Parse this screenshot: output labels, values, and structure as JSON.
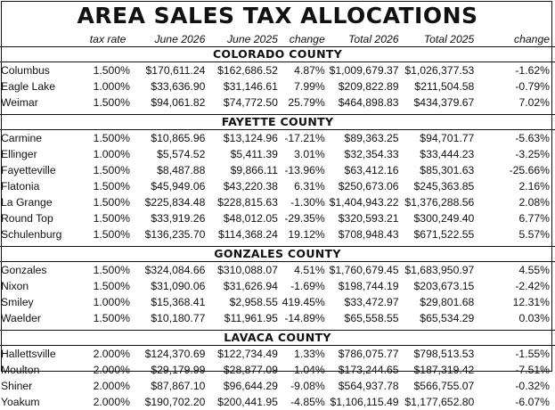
{
  "title": "AREA SALES TAX ALLOCATIONS",
  "headers": [
    "",
    "tax rate",
    "June 2026",
    "June 2025",
    "change",
    "Total 2026",
    "Total 2025",
    "change"
  ],
  "counties": [
    {
      "name": "COLORADO COUNTY",
      "rows": [
        [
          "Columbus",
          "1.500%",
          "$170,611.24",
          "$162,686.52",
          "4.87%",
          "$1,009,679.37",
          "$1,026,377.53",
          "-1.62%"
        ],
        [
          "Eagle Lake",
          "1.000%",
          "$33,636.90",
          "$31,146.61",
          "7.99%",
          "$209,822.89",
          "$211,504.58",
          "-0.79%"
        ],
        [
          "Weimar",
          "1.500%",
          "$94,061.82",
          "$74,772.50",
          "25.79%",
          "$464,898.83",
          "$434,379.67",
          "7.02%"
        ]
      ]
    },
    {
      "name": "FAYETTE COUNTY",
      "rows": [
        [
          "Carmine",
          "1.500%",
          "$10,865.96",
          "$13,124.96",
          "-17.21%",
          "$89,363.25",
          "$94,701.77",
          "-5.63%"
        ],
        [
          "Ellinger",
          "1.000%",
          "$5,574.52",
          "$5,411.39",
          "3.01%",
          "$32,354.33",
          "$33,444.23",
          "-3.25%"
        ],
        [
          "Fayetteville",
          "1.500%",
          "$8,487.88",
          "$9,866.11",
          "-13.96%",
          "$63,412.16",
          "$85,301.63",
          "-25.66%"
        ],
        [
          "Flatonia",
          "1.500%",
          "$45,949.06",
          "$43,220.38",
          "6.31%",
          "$250,673.06",
          "$245,363.85",
          "2.16%"
        ],
        [
          "La Grange",
          "1.500%",
          "$225,834.48",
          "$228,815.63",
          "-1.30%",
          "$1,404,943.22",
          "$1,376,288.56",
          "2.08%"
        ],
        [
          "Round Top",
          "1.500%",
          "$33,919.26",
          "$48,012.05",
          "-29.35%",
          "$320,593.21",
          "$300,249.40",
          "6.77%"
        ],
        [
          "Schulenburg",
          "1.500%",
          "$136,235.70",
          "$114,368.24",
          "19.12%",
          "$708,948.43",
          "$671,522.55",
          "5.57%"
        ]
      ]
    },
    {
      "name": "GONZALES COUNTY",
      "rows": [
        [
          "Gonzales",
          "1.500%",
          "$324,084.66",
          "$310,088.07",
          "4.51%",
          "$1,760,679.45",
          "$1,683,950.97",
          "4.55%"
        ],
        [
          "Nixon",
          "1.500%",
          "$31,090.06",
          "$31,626.94",
          "-1.69%",
          "$198,744.19",
          "$203,673.15",
          "-2.42%"
        ],
        [
          "Smiley",
          "1.000%",
          "$15,368.41",
          "$2,958.55",
          "419.45%",
          "$33,472.97",
          "$29,801.68",
          "12.31%"
        ],
        [
          "Waelder",
          "1.500%",
          "$10,180.77",
          "$11,961.95",
          "-14.89%",
          "$65,558.55",
          "$65,534.29",
          "0.03%"
        ]
      ]
    },
    {
      "name": "LAVACA COUNTY",
      "rows": [
        [
          "Hallettsville",
          "2.000%",
          "$124,370.69",
          "$122,734.49",
          "1.33%",
          "$786,075.77",
          "$798,513.53",
          "-1.55%"
        ],
        [
          "Moulton",
          "2.000%",
          "$29,179.99",
          "$28,877.09",
          "1.04%",
          "$173,244.65",
          "$187,319.42",
          "-7.51%"
        ],
        [
          "Shiner",
          "2.000%",
          "$87,867.10",
          "$96,644.29",
          "-9.08%",
          "$564,937.78",
          "$566,755.07",
          "-0.32%"
        ],
        [
          "Yoakum",
          "2.000%",
          "$190,702.20",
          "$200,441.95",
          "-4.85%",
          "$1,106,115.49",
          "$1,177,652.80",
          "-6.07%"
        ]
      ]
    }
  ]
}
